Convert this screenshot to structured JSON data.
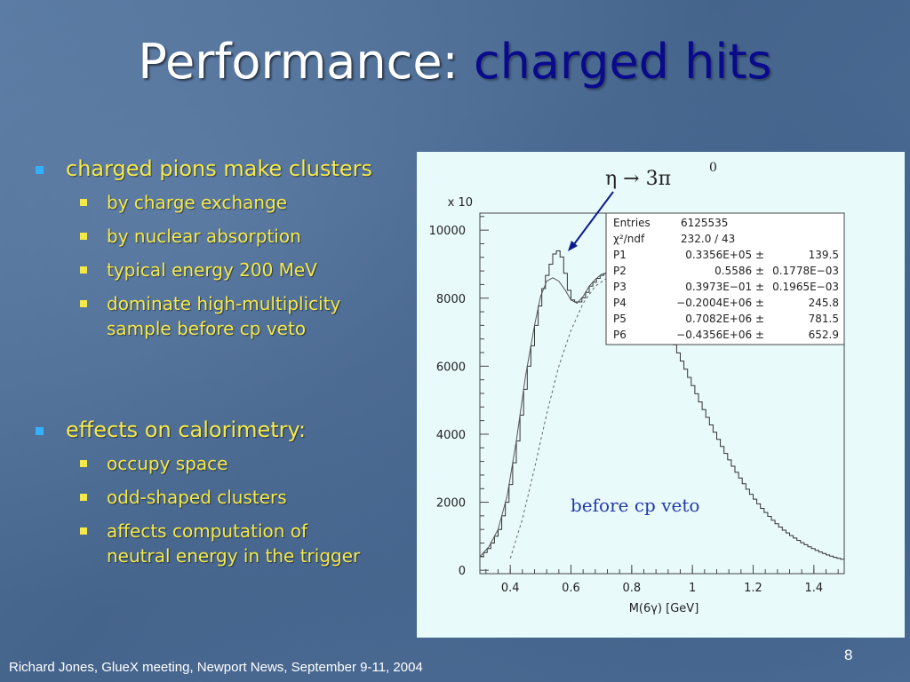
{
  "slide": {
    "title_main": "Performance: ",
    "title_accent": "charged hits",
    "footer": "Richard Jones, GlueX meeting, Newport News, September 9-11, 2004",
    "page_number": "8",
    "colors": {
      "bullet_text": "#f5e94a",
      "title_accent": "#0a0a8c",
      "bullet_marker": "#33b0ff"
    }
  },
  "bullets": [
    {
      "text": "charged pions make clusters",
      "children": [
        "by charge exchange",
        "by nuclear absorption",
        "typical energy 200 MeV",
        [
          "dominate high-multiplicity",
          "sample before cp veto"
        ]
      ]
    },
    {
      "text": "effects on calorimetry:",
      "children": [
        "occupy space",
        "odd-shaped clusters",
        [
          "affects computation of",
          "neutral energy in the trigger"
        ]
      ]
    }
  ],
  "chart_data": {
    "type": "line",
    "xlabel": "M(6γ) [GeV]",
    "y_multiplier_label": "x 10",
    "xlim": [
      0.3,
      1.5
    ],
    "ylim": [
      -100,
      10500
    ],
    "xticks": [
      "0.4",
      "0.6",
      "0.8",
      "1",
      "1.2",
      "1.4"
    ],
    "yticks": [
      "0",
      "2000",
      "4000",
      "6000",
      "8000",
      "10000"
    ],
    "annotation_eta": "η → 3π",
    "annotation_eta_sup": "0",
    "annotation_text": "before cp veto",
    "stats": [
      [
        "Entries",
        "6125535",
        ""
      ],
      [
        "χ²/ndf",
        "232.0    /    43",
        ""
      ],
      [
        "P1",
        "0.3356E+05 ±",
        "139.5"
      ],
      [
        "P2",
        "0.5586 ±",
        "0.1778E−03"
      ],
      [
        "P3",
        "0.3973E−01 ±",
        "0.1965E−03"
      ],
      [
        "P4",
        "−0.2004E+06 ±",
        "245.8"
      ],
      [
        "P5",
        "0.7082E+06 ±",
        "781.5"
      ],
      [
        "P6",
        "−0.4356E+06 ±",
        "652.9"
      ]
    ],
    "series": [
      {
        "values_x": [
          0.3,
          0.33,
          0.36,
          0.39,
          0.42,
          0.45,
          0.48,
          0.5,
          0.52,
          0.54,
          0.55,
          0.56,
          0.57,
          0.58,
          0.59,
          0.6,
          0.62,
          0.64,
          0.66,
          0.68,
          0.7,
          0.72,
          0.74,
          0.76,
          0.78,
          0.8,
          0.82,
          0.84,
          0.86,
          0.88,
          0.9,
          0.92,
          0.94,
          0.96,
          0.98,
          1.0,
          1.02,
          1.04,
          1.06,
          1.08,
          1.1,
          1.12,
          1.14,
          1.16,
          1.18,
          1.2,
          1.22,
          1.24,
          1.26,
          1.28,
          1.3,
          1.32,
          1.34,
          1.36,
          1.38,
          1.4,
          1.42,
          1.44,
          1.46,
          1.48,
          1.5
        ],
        "values_y": [
          400,
          700,
          1200,
          2200,
          3800,
          5700,
          7200,
          8150,
          8800,
          9300,
          9400,
          9350,
          9000,
          8550,
          8150,
          7950,
          7850,
          8050,
          8350,
          8550,
          8700,
          8750,
          8750,
          8700,
          8650,
          8560,
          8450,
          8250,
          8000,
          7700,
          7350,
          6950,
          6550,
          6150,
          5750,
          5350,
          4950,
          4570,
          4200,
          3850,
          3500,
          3180,
          2880,
          2600,
          2330,
          2090,
          1860,
          1660,
          1470,
          1300,
          1150,
          1020,
          900,
          790,
          690,
          600,
          520,
          450,
          390,
          340,
          300
        ]
      },
      {
        "values_x": [
          0.3,
          0.33,
          0.36,
          0.39,
          0.42,
          0.45,
          0.48,
          0.5,
          0.52,
          0.54,
          0.56,
          0.58,
          0.6,
          0.62,
          0.64,
          0.66,
          0.68,
          0.7,
          0.72,
          0.74,
          0.76,
          0.78,
          0.8,
          0.82
        ],
        "values_y": [
          400,
          700,
          1200,
          2200,
          3800,
          5700,
          7200,
          8050,
          8500,
          8600,
          8500,
          8250,
          7950,
          7850,
          8050,
          8350,
          8550,
          8700,
          8750,
          8750,
          8700,
          8650,
          8560,
          8450
        ]
      },
      {
        "values_x": [
          0.4,
          0.44,
          0.48,
          0.52,
          0.56,
          0.6,
          0.64,
          0.68,
          0.72,
          0.76,
          0.8,
          0.84,
          0.88,
          0.92,
          0.96
        ],
        "values_y": [
          350,
          1500,
          3000,
          4600,
          6000,
          7050,
          7850,
          8350,
          8600,
          8700,
          8600,
          8300,
          7850,
          7300,
          6650
        ]
      }
    ]
  }
}
